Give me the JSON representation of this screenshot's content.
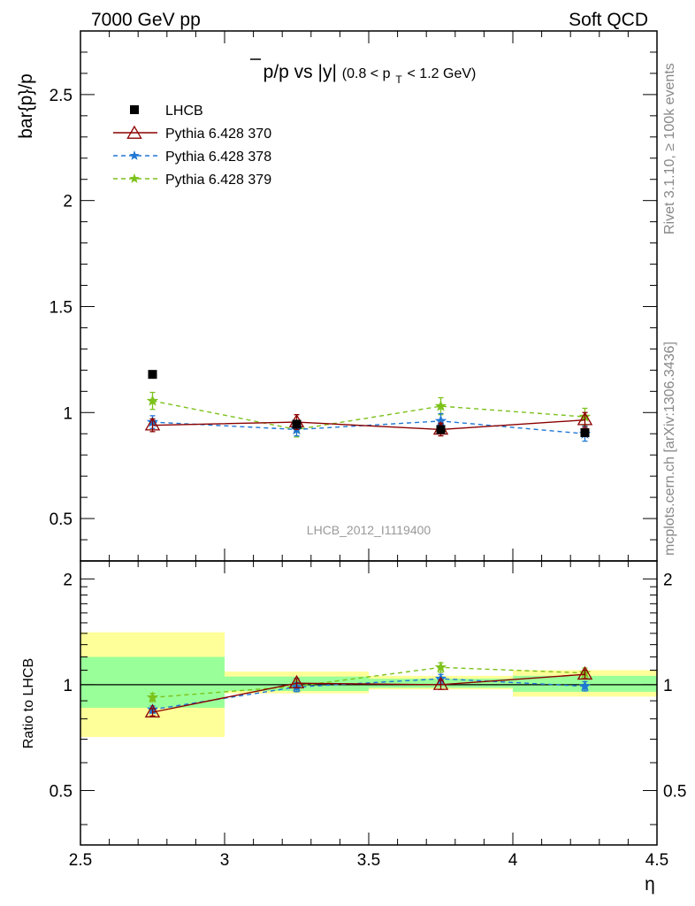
{
  "header": {
    "left": "7000 GeV pp",
    "right": "Soft QCD"
  },
  "side": {
    "rivet": "Rivet 3.1.10, ≥ 100k events",
    "mcplots": "mcplots.cern.ch [arXiv:1306.3436]"
  },
  "watermark": "LHCB_2012_I1119400",
  "colors": {
    "lhcb": "#000000",
    "p370": "#8b0000",
    "p378": "#1f77d4",
    "p379": "#7cc21b",
    "band_yellow": "#ffff99",
    "band_green": "#99ff99"
  },
  "chart_data": [
    {
      "type": "scatter",
      "panel": "main",
      "title_parts": {
        "main": "p/p vs |y|",
        "range": "(0.8 < p",
        "sub": "T",
        "range_end": " < 1.2 GeV)"
      },
      "ylabel": "bar{p}/p",
      "xlim": [
        2.5,
        4.5
      ],
      "ylim": [
        0.3,
        2.8
      ],
      "yticks": [
        0.5,
        1,
        1.5,
        2,
        2.5
      ],
      "ytick_labels": [
        "0.5",
        "1",
        "1.5",
        "2",
        "2.5"
      ],
      "legend": [
        "LHCB",
        "Pythia 6.428 370",
        "Pythia 6.428 378",
        "Pythia 6.428 379"
      ],
      "legend_position": "top-left",
      "x": [
        2.75,
        3.25,
        3.75,
        4.25
      ],
      "x_bins": [
        [
          2.5,
          3.0
        ],
        [
          3.0,
          3.5
        ],
        [
          3.5,
          4.0
        ],
        [
          4.0,
          4.5
        ]
      ],
      "series": [
        {
          "name": "LHCB",
          "values": [
            1.18,
            0.945,
            0.92,
            0.905
          ],
          "errors": [
            0.005,
            0.005,
            0.005,
            0.005
          ]
        },
        {
          "name": "Pythia 6.428 370",
          "values": [
            0.94,
            0.955,
            0.92,
            0.965
          ],
          "errors": [
            0.03,
            0.035,
            0.03,
            0.035
          ]
        },
        {
          "name": "Pythia 6.428 378",
          "values": [
            0.955,
            0.92,
            0.96,
            0.9
          ],
          "errors": [
            0.03,
            0.03,
            0.035,
            0.035
          ]
        },
        {
          "name": "Pythia 6.428 379",
          "values": [
            1.055,
            0.92,
            1.03,
            0.98
          ],
          "errors": [
            0.04,
            0.035,
            0.04,
            0.04
          ]
        }
      ]
    },
    {
      "type": "scatter",
      "panel": "ratio",
      "ylabel": "Ratio to LHCB",
      "xlabel": "η",
      "xlim": [
        2.5,
        4.5
      ],
      "ylim": [
        0.35,
        2.25
      ],
      "scale": "log",
      "yticks": [
        0.5,
        1,
        2
      ],
      "ytick_labels": [
        "0.5",
        "1",
        "2"
      ],
      "xticks": [
        2.5,
        3,
        3.5,
        4,
        4.5
      ],
      "xtick_labels": [
        "2.5",
        "3",
        "3.5",
        "4",
        "4.5"
      ],
      "reference": 1,
      "x": [
        2.75,
        3.25,
        3.75,
        4.25
      ],
      "bands": [
        {
          "x0": 2.5,
          "x1": 3.0,
          "yellow": [
            0.71,
            1.41
          ],
          "green": [
            0.86,
            1.2
          ]
        },
        {
          "x0": 3.0,
          "x1": 3.5,
          "yellow": [
            0.945,
            1.09
          ],
          "green": [
            0.96,
            1.055
          ]
        },
        {
          "x0": 3.5,
          "x1": 4.0,
          "yellow": [
            0.97,
            1.06
          ],
          "green": [
            0.98,
            1.04
          ]
        },
        {
          "x0": 4.0,
          "x1": 4.5,
          "yellow": [
            0.925,
            1.1
          ],
          "green": [
            0.955,
            1.06
          ]
        }
      ],
      "series": [
        {
          "name": "Pythia 6.428 370",
          "values": [
            0.835,
            1.01,
            1.0,
            1.07
          ],
          "errors": [
            0.02,
            0.03,
            0.03,
            0.03
          ]
        },
        {
          "name": "Pythia 6.428 378",
          "values": [
            0.85,
            0.985,
            1.04,
            0.99
          ],
          "errors": [
            0.02,
            0.03,
            0.03,
            0.03
          ]
        },
        {
          "name": "Pythia 6.428 379",
          "values": [
            0.92,
            0.99,
            1.12,
            1.08
          ],
          "errors": [
            0.025,
            0.035,
            0.035,
            0.035
          ]
        }
      ]
    }
  ]
}
